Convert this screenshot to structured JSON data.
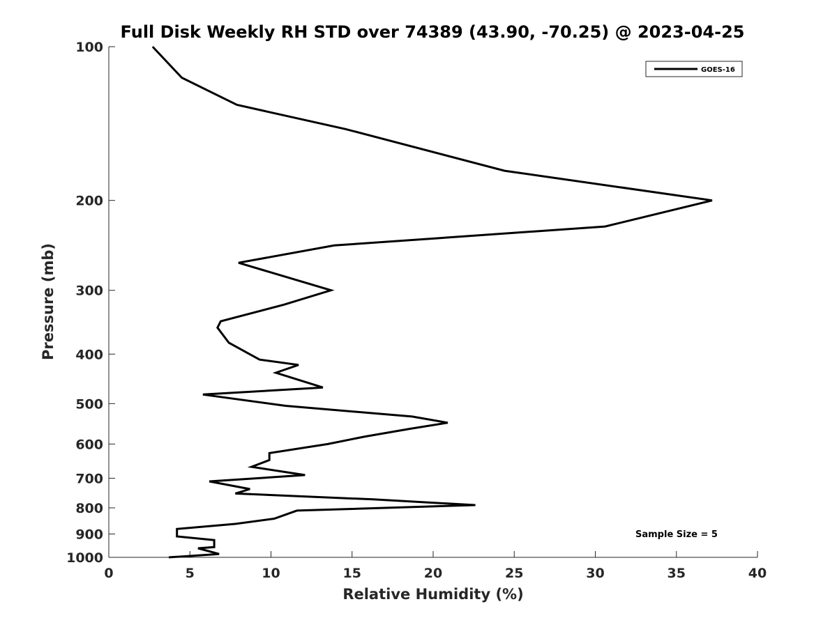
{
  "chart_data": {
    "type": "line",
    "title": "Full Disk Weekly RH STD over 74389 (43.90, -70.25) @ 2023-04-25",
    "xlabel": "Relative Humidity (%)",
    "ylabel": "Pressure (mb)",
    "xlim": [
      0,
      40
    ],
    "ylim": [
      100,
      1000
    ],
    "yscale": "log",
    "y_reversed": true,
    "xticks": [
      0,
      5,
      10,
      15,
      20,
      25,
      30,
      35,
      40
    ],
    "yticks": [
      100,
      200,
      300,
      400,
      500,
      600,
      700,
      800,
      900,
      1000
    ],
    "grid": false,
    "legend_position": "top-right",
    "annotation": "Sample Size = 5",
    "series": [
      {
        "name": "GOES-16",
        "color": "#000000",
        "x": [
          2.7,
          4.5,
          7.9,
          14.6,
          24.4,
          37.2,
          30.6,
          13.9,
          8.0,
          13.7,
          10.8,
          6.9,
          6.7,
          7.4,
          9.3,
          11.7,
          10.3,
          13.2,
          5.8,
          10.9,
          18.7,
          20.9,
          18.6,
          15.8,
          13.5,
          9.9,
          9.9,
          8.8,
          12.1,
          6.2,
          8.7,
          7.8,
          16.3,
          22.6,
          11.6,
          10.2,
          7.8,
          4.2,
          4.2,
          6.5,
          6.5,
          5.5,
          6.8,
          3.7
        ],
        "y": [
          100,
          115,
          130,
          145,
          175,
          200,
          225,
          245,
          265,
          300,
          320,
          345,
          355,
          380,
          410,
          420,
          435,
          465,
          480,
          505,
          530,
          545,
          560,
          580,
          600,
          625,
          645,
          665,
          690,
          710,
          735,
          750,
          770,
          790,
          810,
          840,
          860,
          880,
          910,
          925,
          955,
          960,
          985,
          1000
        ]
      }
    ]
  }
}
